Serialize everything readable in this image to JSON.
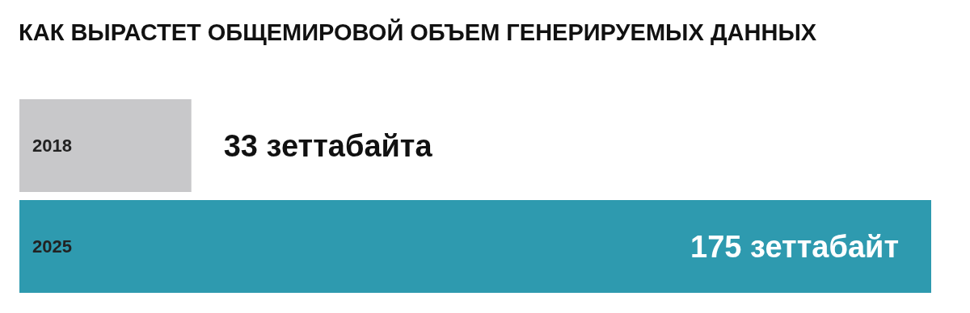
{
  "chart_data": {
    "type": "bar",
    "title": "КАК ВЫРАСТЕТ ОБЩЕМИРОВОЙ ОБЪЕМ ГЕНЕРИРУЕМЫХ ДАННЫХ",
    "orientation": "horizontal",
    "categories": [
      "2018",
      "2025"
    ],
    "values": [
      33,
      175
    ],
    "colors": [
      "#c8c8ca",
      "#2e9aaf"
    ],
    "value_labels": [
      "33 зеттабайта",
      "175 зеттабайт"
    ]
  }
}
